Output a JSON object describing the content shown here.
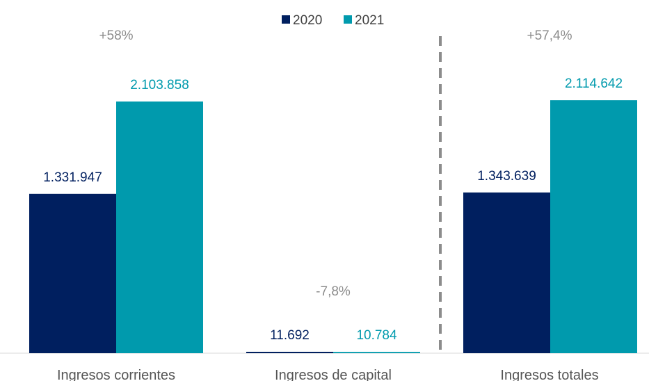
{
  "chart_data": {
    "type": "bar",
    "categories": [
      "Ingresos corrientes",
      "Ingresos de capital",
      "Ingresos totales"
    ],
    "series": [
      {
        "name": "2020",
        "values": [
          1331947,
          11692,
          1343639
        ],
        "labels": [
          "1.331.947",
          "11.692",
          "1.343.639"
        ],
        "color": "#001f5f"
      },
      {
        "name": "2021",
        "values": [
          2103858,
          10784,
          2114642
        ],
        "labels": [
          "2.103.858",
          "10.784",
          "2.114.642"
        ],
        "color": "#009aad"
      }
    ],
    "changes": [
      "+58%",
      "-7,8%",
      "+57,4%"
    ],
    "ylim": [
      0,
      2500000
    ],
    "grid": false,
    "legend": "top-center",
    "separator": "dashed vertical line between Ingresos de capital and Ingresos totales"
  }
}
